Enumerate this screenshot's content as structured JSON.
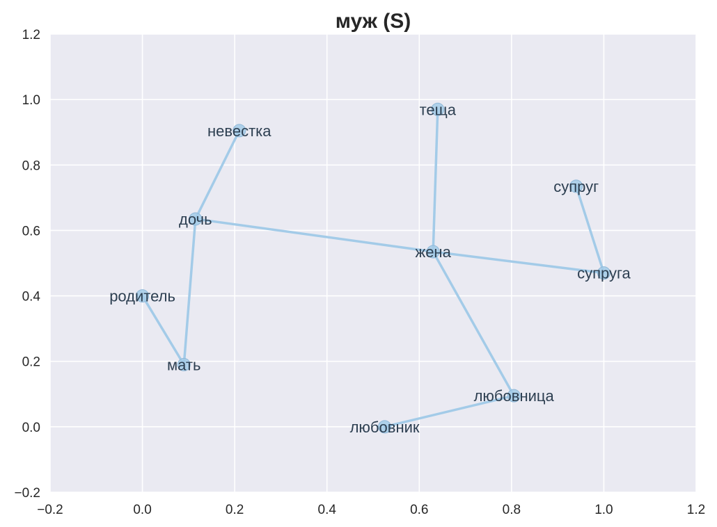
{
  "chart_data": {
    "type": "scatter",
    "title": "муж (S)",
    "xlabel": "",
    "ylabel": "",
    "xlim": [
      -0.2,
      1.2
    ],
    "ylim": [
      -0.2,
      1.2
    ],
    "xticks": [
      -0.2,
      0.0,
      0.2,
      0.4,
      0.6,
      0.8,
      1.0,
      1.2
    ],
    "yticks": [
      -0.2,
      0.0,
      0.2,
      0.4,
      0.6,
      0.8,
      1.0,
      1.2
    ],
    "xtick_labels": [
      "−0.2",
      "0.0",
      "0.2",
      "0.4",
      "0.6",
      "0.8",
      "1.0",
      "1.2"
    ],
    "ytick_labels": [
      "−0.2",
      "0.0",
      "0.2",
      "0.4",
      "0.6",
      "0.8",
      "1.0",
      "1.2"
    ],
    "grid": true,
    "colors": {
      "background": "#eaeaf2",
      "grid": "#ffffff",
      "line": "#a3cbe8",
      "marker": "#a3cbe8",
      "label": "#2c3e50"
    },
    "points": [
      {
        "label": "теща",
        "x": 0.64,
        "y": 0.97
      },
      {
        "label": "невестка",
        "x": 0.21,
        "y": 0.905
      },
      {
        "label": "супруг",
        "x": 0.94,
        "y": 0.735
      },
      {
        "label": "дочь",
        "x": 0.115,
        "y": 0.635
      },
      {
        "label": "жена",
        "x": 0.63,
        "y": 0.535
      },
      {
        "label": "супруга",
        "x": 1.0,
        "y": 0.47
      },
      {
        "label": "родитель",
        "x": 0.0,
        "y": 0.4
      },
      {
        "label": "мать",
        "x": 0.09,
        "y": 0.19
      },
      {
        "label": "любовница",
        "x": 0.805,
        "y": 0.095
      },
      {
        "label": "любовник",
        "x": 0.525,
        "y": 0.0
      }
    ],
    "edges": [
      [
        "невестка",
        "дочь"
      ],
      [
        "дочь",
        "мать"
      ],
      [
        "мать",
        "родитель"
      ],
      [
        "дочь",
        "жена"
      ],
      [
        "жена",
        "супруга"
      ],
      [
        "супруга",
        "супруг"
      ],
      [
        "жена",
        "теща"
      ],
      [
        "жена",
        "любовница"
      ],
      [
        "любовница",
        "любовник"
      ]
    ]
  }
}
